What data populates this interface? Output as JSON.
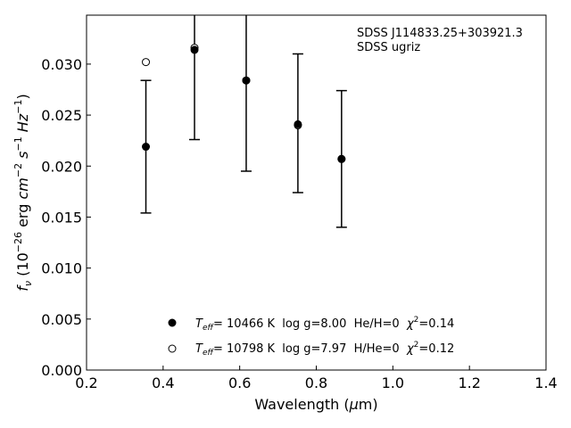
{
  "chart_data": {
    "type": "scatter",
    "title": "",
    "annotations": [
      "SDSS J114833.25+303921.3",
      "SDSS ugriz"
    ],
    "xlabel": "Wavelength (μm)",
    "ylabel": "f_ν (10^-26 erg cm^-2 s^-1 Hz^-1)",
    "xlim": [
      0.2,
      1.4
    ],
    "ylim": [
      0.0,
      0.0348
    ],
    "xticks": [
      0.2,
      0.4,
      0.6,
      0.8,
      1.0,
      1.2,
      1.4
    ],
    "xtick_labels": [
      "0.2",
      "0.4",
      "0.6",
      "0.8",
      "1.0",
      "1.2",
      "1.4"
    ],
    "yticks": [
      0.0,
      0.005,
      0.01,
      0.015,
      0.02,
      0.025,
      0.03
    ],
    "ytick_labels": [
      "0.000",
      "0.005",
      "0.010",
      "0.015",
      "0.020",
      "0.025",
      "0.030"
    ],
    "grid": false,
    "legend_position": "bottom-center",
    "observed": {
      "x": [
        0.355,
        0.482,
        0.617,
        0.752,
        0.866
      ],
      "y": [
        0.0219,
        0.0313,
        0.0284,
        0.0242,
        0.0207
      ],
      "yerr": [
        0.0065,
        0.0087,
        0.0089,
        0.0068,
        0.0067
      ]
    },
    "series": [
      {
        "name": "Teff= 10466 K  log g=8.00  He/H=0  χ2=0.14",
        "marker": "filled-circle",
        "x": [
          0.355,
          0.482,
          0.617,
          0.752,
          0.866
        ],
        "y": [
          0.0219,
          0.0314,
          0.0284,
          0.0241,
          0.0207
        ]
      },
      {
        "name": "Teff= 10798 K  log g=7.97  H/He=0  χ2=0.12",
        "marker": "open-circle",
        "x": [
          0.355,
          0.482,
          0.617,
          0.752,
          0.866
        ],
        "y": [
          0.0302,
          0.0316,
          0.0284,
          0.024,
          0.0207
        ]
      }
    ],
    "legend": [
      {
        "marker": "filled-circle",
        "teff": "T",
        "teff_sub": "eff",
        "rest": "= 10466 K  log g=8.00  He/H=0  ",
        "chi": "χ",
        "chi_sup": "2",
        "chi_val": "=0.14"
      },
      {
        "marker": "open-circle",
        "teff": "T",
        "teff_sub": "eff",
        "rest": "= 10798 K  log g=7.97  H/He=0  ",
        "chi": "χ",
        "chi_sup": "2",
        "chi_val": "=0.12"
      }
    ],
    "colors": {
      "marker": "#000000",
      "axes": "#000000",
      "background": "#ffffff"
    }
  }
}
